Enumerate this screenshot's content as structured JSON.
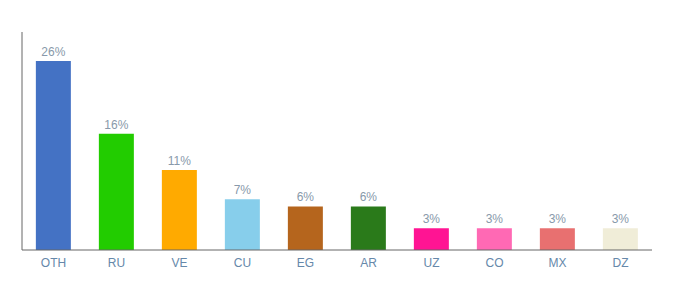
{
  "chart_data": {
    "type": "bar",
    "categories": [
      "OTH",
      "RU",
      "VE",
      "CU",
      "EG",
      "AR",
      "UZ",
      "CO",
      "MX",
      "DZ"
    ],
    "values": [
      26,
      16,
      11,
      7,
      6,
      6,
      3,
      3,
      3,
      3
    ],
    "value_labels": [
      "26%",
      "16%",
      "11%",
      "7%",
      "6%",
      "6%",
      "3%",
      "3%",
      "3%",
      "3%"
    ],
    "data_labels": true,
    "colors": [
      "#4472c4",
      "#22cc00",
      "#ffaa00",
      "#87ceeb",
      "#b5651d",
      "#2a7a1a",
      "#ff1493",
      "#ff69b4",
      "#e87070",
      "#f0edd8"
    ],
    "ylim": [
      0,
      30
    ],
    "grid": false,
    "tick_labels": "x"
  }
}
